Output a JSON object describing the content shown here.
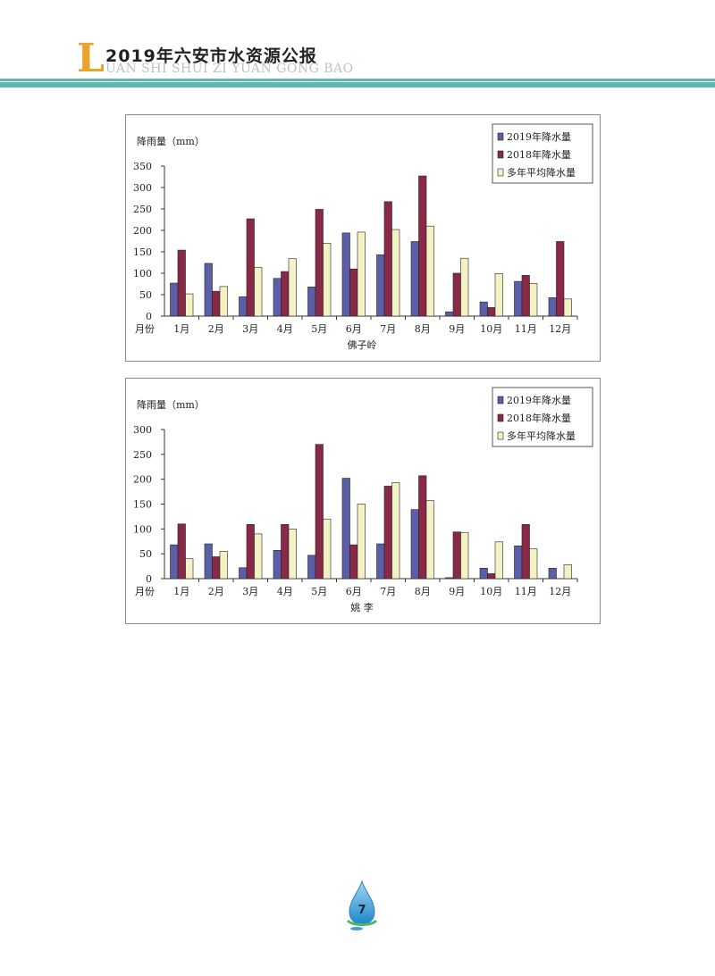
{
  "header": {
    "logo_letter": "L",
    "title": "2019年六安市水资源公报",
    "subtitle": "UAN SHI SHUI ZI YUAN GONG BAO"
  },
  "footer": {
    "page_number": "7"
  },
  "colors": {
    "band": "#5fb8b0",
    "series_2019": "#5b5fa8",
    "series_2018": "#8a2848",
    "series_avg": "#f4f2c4"
  },
  "chart_data": [
    {
      "type": "bar",
      "ylabel": "降雨量（mm）",
      "xlabel_prefix": "月份",
      "station": "佛子岭",
      "categories": [
        "1月",
        "2月",
        "3月",
        "4月",
        "5月",
        "6月",
        "7月",
        "8月",
        "9月",
        "10月",
        "11月",
        "12月"
      ],
      "yticks": [
        0,
        50,
        100,
        150,
        200,
        250,
        300,
        350
      ],
      "ylim": [
        0,
        350
      ],
      "legend_position": "top-right",
      "series": [
        {
          "name": "2019年降水量",
          "values": [
            77,
            123,
            45,
            88,
            68,
            194,
            143,
            174,
            10,
            33,
            81,
            43
          ]
        },
        {
          "name": "2018年降水量",
          "values": [
            154,
            58,
            227,
            104,
            249,
            110,
            267,
            327,
            100,
            20,
            95,
            174
          ]
        },
        {
          "name": "多年平均降水量",
          "values": [
            52,
            69,
            114,
            134,
            170,
            196,
            202,
            210,
            135,
            99,
            76,
            40
          ]
        }
      ]
    },
    {
      "type": "bar",
      "ylabel": "降雨量（mm）",
      "xlabel_prefix": "月份",
      "station": "姚 李",
      "categories": [
        "1月",
        "2月",
        "3月",
        "4月",
        "5月",
        "6月",
        "7月",
        "8月",
        "9月",
        "10月",
        "11月",
        "12月"
      ],
      "yticks": [
        0,
        50,
        100,
        150,
        200,
        250,
        300
      ],
      "ylim": [
        0,
        300
      ],
      "legend_position": "top-right",
      "series": [
        {
          "name": "2019年降水量",
          "values": [
            68,
            70,
            22,
            57,
            47,
            202,
            70,
            139,
            2,
            21,
            66,
            21
          ]
        },
        {
          "name": "2018年降水量",
          "values": [
            110,
            44,
            109,
            109,
            270,
            68,
            186,
            207,
            94,
            10,
            109,
            0
          ]
        },
        {
          "name": "多年平均降水量",
          "values": [
            40,
            55,
            90,
            100,
            120,
            150,
            193,
            157,
            93,
            74,
            60,
            28
          ]
        }
      ]
    }
  ]
}
